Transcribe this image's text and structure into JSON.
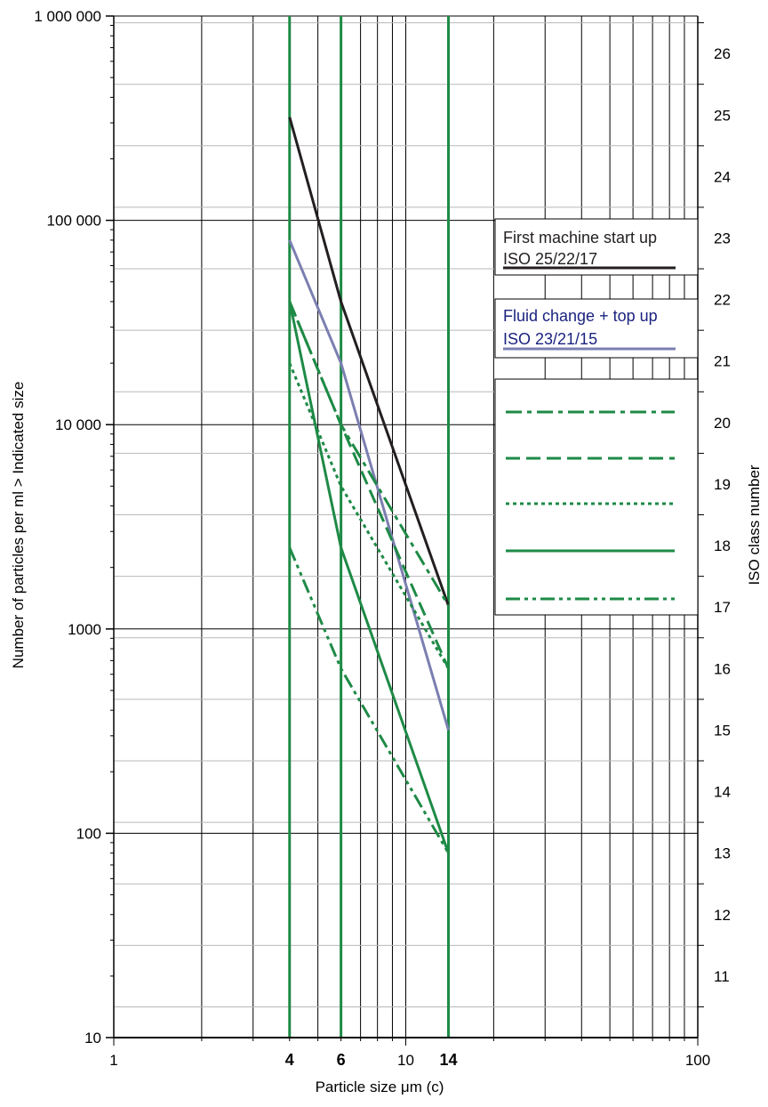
{
  "chart_data": {
    "type": "line",
    "x_scale": "log",
    "y_scale": "log",
    "xlim": [
      1,
      100
    ],
    "ylim": [
      10,
      1000000
    ],
    "xlabel": "Particle size  μm (c)",
    "ylabel": "Number of particles per ml > Indicated size",
    "y2label": "ISO class number",
    "x_tick_labels": [
      {
        "value": 1,
        "label": "1",
        "bold": false
      },
      {
        "value": 4,
        "label": "4",
        "bold": true
      },
      {
        "value": 6,
        "label": "6",
        "bold": true
      },
      {
        "value": 10,
        "label": "10",
        "bold": false
      },
      {
        "value": 14,
        "label": "14",
        "bold": true
      },
      {
        "value": 100,
        "label": "100",
        "bold": false
      }
    ],
    "y_tick_labels": [
      {
        "value": 10,
        "label": "10"
      },
      {
        "value": 100,
        "label": "100"
      },
      {
        "value": 1000,
        "label": "1000"
      },
      {
        "value": 10000,
        "label": "10 000"
      },
      {
        "value": 100000,
        "label": "100 000"
      },
      {
        "value": 1000000,
        "label": "1 000 000"
      }
    ],
    "iso_classes": [
      "11",
      "12",
      "13",
      "14",
      "15",
      "16",
      "17",
      "18",
      "19",
      "20",
      "21",
      "22",
      "23",
      "24",
      "25",
      "26"
    ],
    "highlight_x": [
      4,
      6,
      14
    ],
    "grid": true,
    "legend_position": "right",
    "series": [
      {
        "name": "First machine start up ISO 25/22/17",
        "color": "#231f20",
        "style": "solid",
        "x": [
          4,
          6,
          14
        ],
        "y": [
          320000,
          40000,
          1300
        ]
      },
      {
        "name": "Fluid change + top up ISO 23/21/15",
        "color": "#7b7fb0",
        "style": "solid",
        "x": [
          4,
          6,
          14
        ],
        "y": [
          80000,
          20000,
          320
        ]
      },
      {
        "color": "#1e8a46",
        "style": "dashdot",
        "x": [
          4,
          6,
          14
        ],
        "y": [
          40000,
          10000,
          1300
        ]
      },
      {
        "color": "#1e8a46",
        "style": "dashed",
        "x": [
          4,
          6,
          14
        ],
        "y": [
          40000,
          10000,
          640
        ]
      },
      {
        "color": "#1e8a46",
        "style": "dotted",
        "x": [
          4,
          6,
          14
        ],
        "y": [
          20000,
          5000,
          640
        ]
      },
      {
        "color": "#1e8a46",
        "style": "solid",
        "x": [
          4,
          6,
          14
        ],
        "y": [
          40000,
          2500,
          80
        ]
      },
      {
        "color": "#1e8a46",
        "style": "dashdotdot",
        "x": [
          4,
          6,
          14
        ],
        "y": [
          2500,
          640,
          80
        ]
      }
    ],
    "legend": {
      "box1": {
        "line1": "First machine start up",
        "line2": "ISO 25/22/17",
        "color": "#231f20",
        "text_color": "#231f20"
      },
      "box2": {
        "line1": "Fluid change + top up",
        "line2": "ISO 23/21/15",
        "color": "#7b7fb0",
        "text_color": "#1a237e"
      },
      "box3_styles": [
        "dashdot",
        "dashed",
        "dotted",
        "solid",
        "dashdotdot"
      ]
    }
  }
}
